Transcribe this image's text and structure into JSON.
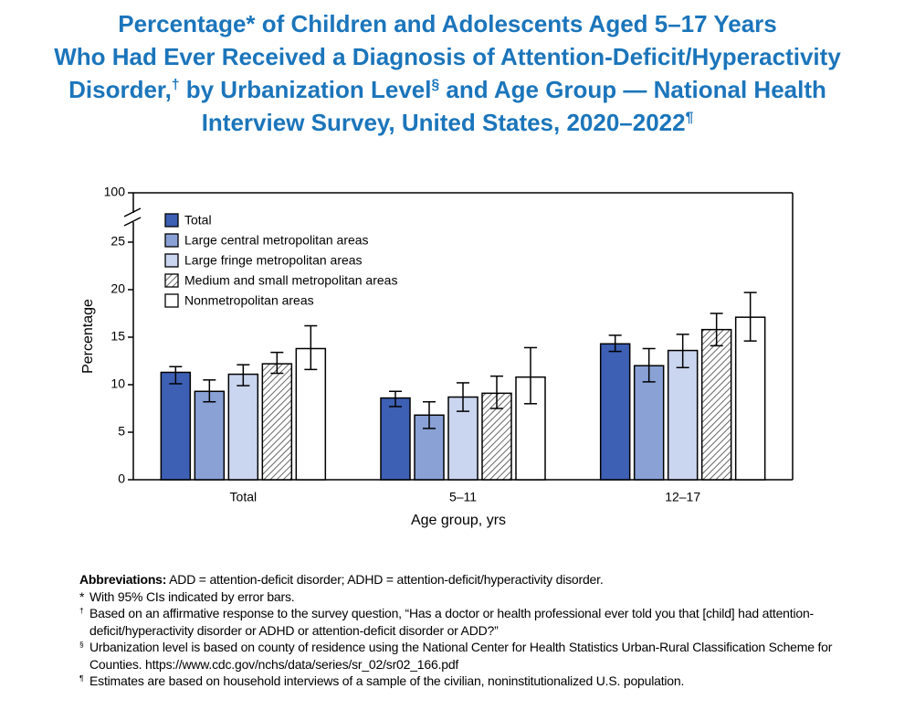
{
  "chart_data": {
    "type": "bar",
    "title": [
      "Percentage* of Children and Adolescents Aged 5–17 Years",
      "Who Had Ever Received a Diagnosis of Attention-Deficit/Hyperactivity",
      "Disorder,† by Urbanization Level§ and Age Group — National Health",
      "Interview Survey, United States, 2020–2022¶"
    ],
    "x_label": "Age group, yrs",
    "y_label": "Percentage",
    "categories": [
      "Total",
      "5–11",
      "12–17"
    ],
    "series": [
      {
        "name": "Total",
        "color": "#3d5fb4",
        "values": [
          11.3,
          8.6,
          14.3
        ],
        "ci_low": [
          10.1,
          7.7,
          13.5
        ],
        "ci_high": [
          11.9,
          9.3,
          15.2
        ]
      },
      {
        "name": "Large central metropolitan areas",
        "color": "#8aa1d6",
        "values": [
          9.3,
          6.8,
          12.0
        ],
        "ci_low": [
          8.2,
          5.4,
          10.3
        ],
        "ci_high": [
          10.5,
          8.2,
          13.8
        ]
      },
      {
        "name": "Large fringe metropolitan areas",
        "color": "#cad5ef",
        "values": [
          11.1,
          8.7,
          13.6
        ],
        "ci_low": [
          9.9,
          7.2,
          11.8
        ],
        "ci_high": [
          12.1,
          10.2,
          15.3
        ]
      },
      {
        "name": "Medium and small metropolitan areas",
        "color": "#ffffff",
        "pattern": "hatch",
        "values": [
          12.2,
          9.1,
          15.8
        ],
        "ci_low": [
          11.2,
          7.5,
          14.1
        ],
        "ci_high": [
          13.4,
          10.9,
          17.5
        ]
      },
      {
        "name": "Nonmetropolitan areas",
        "color": "#ffffff",
        "values": [
          13.8,
          10.8,
          17.1
        ],
        "ci_low": [
          11.6,
          8.0,
          14.6
        ],
        "ci_high": [
          16.2,
          13.9,
          19.7
        ]
      }
    ],
    "ylim": [
      0,
      100
    ],
    "yticks": [
      0,
      5,
      10,
      15,
      20,
      25,
      100
    ],
    "axis_break": true,
    "legend": "top-left"
  },
  "abbreviations": {
    "label": "Abbreviations:",
    "text": "ADD = attention-deficit disorder; ADHD = attention-deficit/hyperactivity disorder."
  },
  "footnotes": [
    {
      "symbol": "*",
      "text": "With 95% CIs indicated by error bars."
    },
    {
      "symbol": "†",
      "text": "Based on an affirmative response to the survey question, “Has a doctor or health professional ever told you that [child] had attention-deficit/hyperactivity disorder or ADHD or attention-deficit disorder or ADD?”"
    },
    {
      "symbol": "§",
      "text": "Urbanization level is based on county of residence using the National Center for Health Statistics Urban-Rural Classification Scheme for Counties. https://www.cdc.gov/nchs/data/series/sr_02/sr02_166.pdf"
    },
    {
      "symbol": "¶",
      "text": "Estimates are based on household interviews of a sample of the civilian, noninstitutionalized U.S. population."
    }
  ]
}
